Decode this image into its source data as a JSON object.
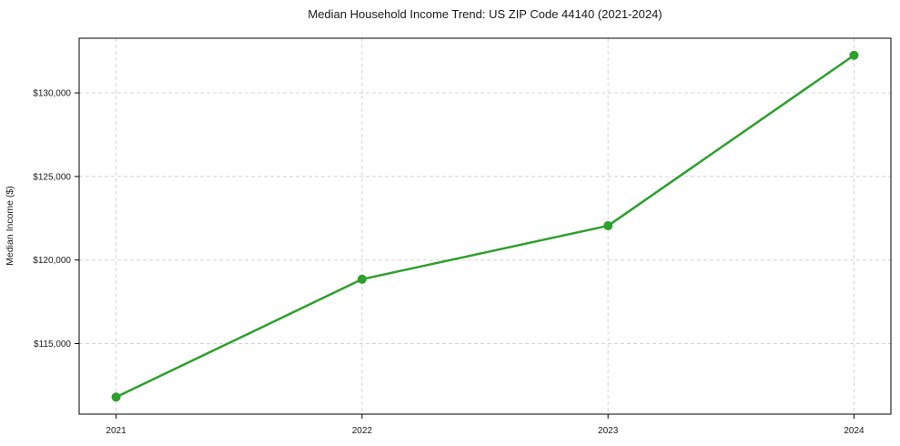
{
  "chart_data": {
    "type": "line",
    "title": "Median Household Income Trend: US ZIP Code 44140 (2021-2024)",
    "xlabel": "",
    "ylabel": "Median Income ($)",
    "x": [
      2021,
      2022,
      2023,
      2024
    ],
    "series": [
      {
        "color": "#2ca02c",
        "marker": "circle",
        "values": [
          111800,
          118850,
          122050,
          132250
        ]
      }
    ],
    "xticks": [
      {
        "value": 2021,
        "label": "2021"
      },
      {
        "value": 2022,
        "label": "2022"
      },
      {
        "value": 2023,
        "label": "2023"
      },
      {
        "value": 2024,
        "label": "2024"
      }
    ],
    "yticks": [
      {
        "value": 115000,
        "label": "$115,000"
      },
      {
        "value": 120000,
        "label": "$120,000"
      },
      {
        "value": 125000,
        "label": "$125,000"
      },
      {
        "value": 130000,
        "label": "$130,000"
      }
    ],
    "xlim": [
      2020.85,
      2024.15
    ],
    "ylim": [
      110780,
      133270
    ],
    "grid": {
      "show": true,
      "line_style": "dashed",
      "color": "#d4d4d4"
    },
    "legend_position": "none",
    "styles": {
      "line_width": 2.5,
      "marker_radius": 5,
      "spine_color": "#000000",
      "tick_color": "#1a1a1a",
      "background": "#ffffff"
    }
  }
}
